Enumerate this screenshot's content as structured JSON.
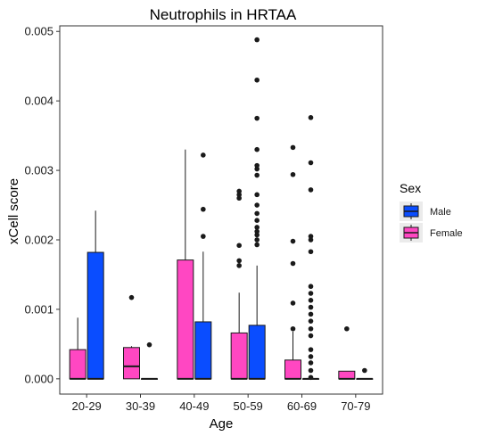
{
  "chart_data": {
    "type": "boxplot",
    "title": "Neutrophils in HRTAA",
    "xlabel": "Age",
    "ylabel": "xCell score",
    "ylim": [
      -0.00022,
      0.00508
    ],
    "yticks": [
      "0.000",
      "0.001",
      "0.002",
      "0.003",
      "0.004",
      "0.005"
    ],
    "ytick_values": [
      0,
      0.001,
      0.002,
      0.003,
      0.004,
      0.005
    ],
    "grid": false,
    "legend": {
      "title": "Sex",
      "position": "right",
      "entries": [
        {
          "name": "Male",
          "color": "#0a4dff"
        },
        {
          "name": "Female",
          "color": "#ff47c2"
        }
      ]
    },
    "categories": [
      "20-29",
      "30-39",
      "40-49",
      "50-59",
      "60-69",
      "70-79"
    ],
    "series": [
      {
        "name": "Female",
        "color": "#ff47c2",
        "boxes": [
          {
            "min": 0,
            "q1": 0,
            "median": 0,
            "q3": 0.00042,
            "max": 0.00088,
            "outliers": []
          },
          {
            "min": 0,
            "q1": 0,
            "median": 0.00018,
            "q3": 0.00045,
            "max": 0.00047,
            "outliers": [
              0.00117
            ]
          },
          {
            "min": 0,
            "q1": 0,
            "median": 0,
            "q3": 0.00171,
            "max": 0.0033,
            "outliers": []
          },
          {
            "min": 0,
            "q1": 0,
            "median": 0,
            "q3": 0.00066,
            "max": 0.00124,
            "outliers": [
              0.00163,
              0.0017,
              0.00192,
              0.0026,
              0.00265,
              0.0027
            ]
          },
          {
            "min": 0,
            "q1": 0,
            "median": 0,
            "q3": 0.00027,
            "max": 0.00068,
            "outliers": [
              0.00072,
              0.00109,
              0.00166,
              0.00198,
              0.00294,
              0.00333
            ]
          },
          {
            "min": 0,
            "q1": 0,
            "median": 0,
            "q3": 0.00011,
            "max": 0.00011,
            "outliers": [
              0.00072
            ]
          }
        ]
      },
      {
        "name": "Male",
        "color": "#0a4dff",
        "boxes": [
          {
            "min": 0,
            "q1": 0,
            "median": 0,
            "q3": 0.00182,
            "max": 0.00242,
            "outliers": []
          },
          {
            "min": 0,
            "q1": 0,
            "median": 0,
            "q3": 0,
            "max": 0,
            "outliers": [
              0.00049
            ]
          },
          {
            "min": 0,
            "q1": 0,
            "median": 0,
            "q3": 0.00082,
            "max": 0.00183,
            "outliers": [
              0.00205,
              0.00244,
              0.00322
            ]
          },
          {
            "min": 0,
            "q1": 0,
            "median": 0,
            "q3": 0.00077,
            "max": 0.00163,
            "outliers": [
              0.00193,
              0.002,
              0.00207,
              0.00212,
              0.00218,
              0.00228,
              0.00238,
              0.0025,
              0.00265,
              0.00293,
              0.00302,
              0.00307,
              0.0033,
              0.00375,
              0.0043,
              0.00488
            ]
          },
          {
            "min": 0,
            "q1": 0,
            "median": 0,
            "q3": 0,
            "max": 0,
            "outliers": [
              2e-05,
              0.00012,
              0.00023,
              0.00032,
              0.00042,
              0.00062,
              0.00072,
              0.00083,
              0.00093,
              0.00103,
              0.00113,
              0.00123,
              0.00133,
              0.00183,
              0.002,
              0.00205,
              0.00272,
              0.00311,
              0.00376
            ]
          },
          {
            "min": 0,
            "q1": 0,
            "median": 0,
            "q3": 0,
            "max": 0,
            "outliers": [
              0.00012
            ]
          }
        ]
      }
    ]
  }
}
